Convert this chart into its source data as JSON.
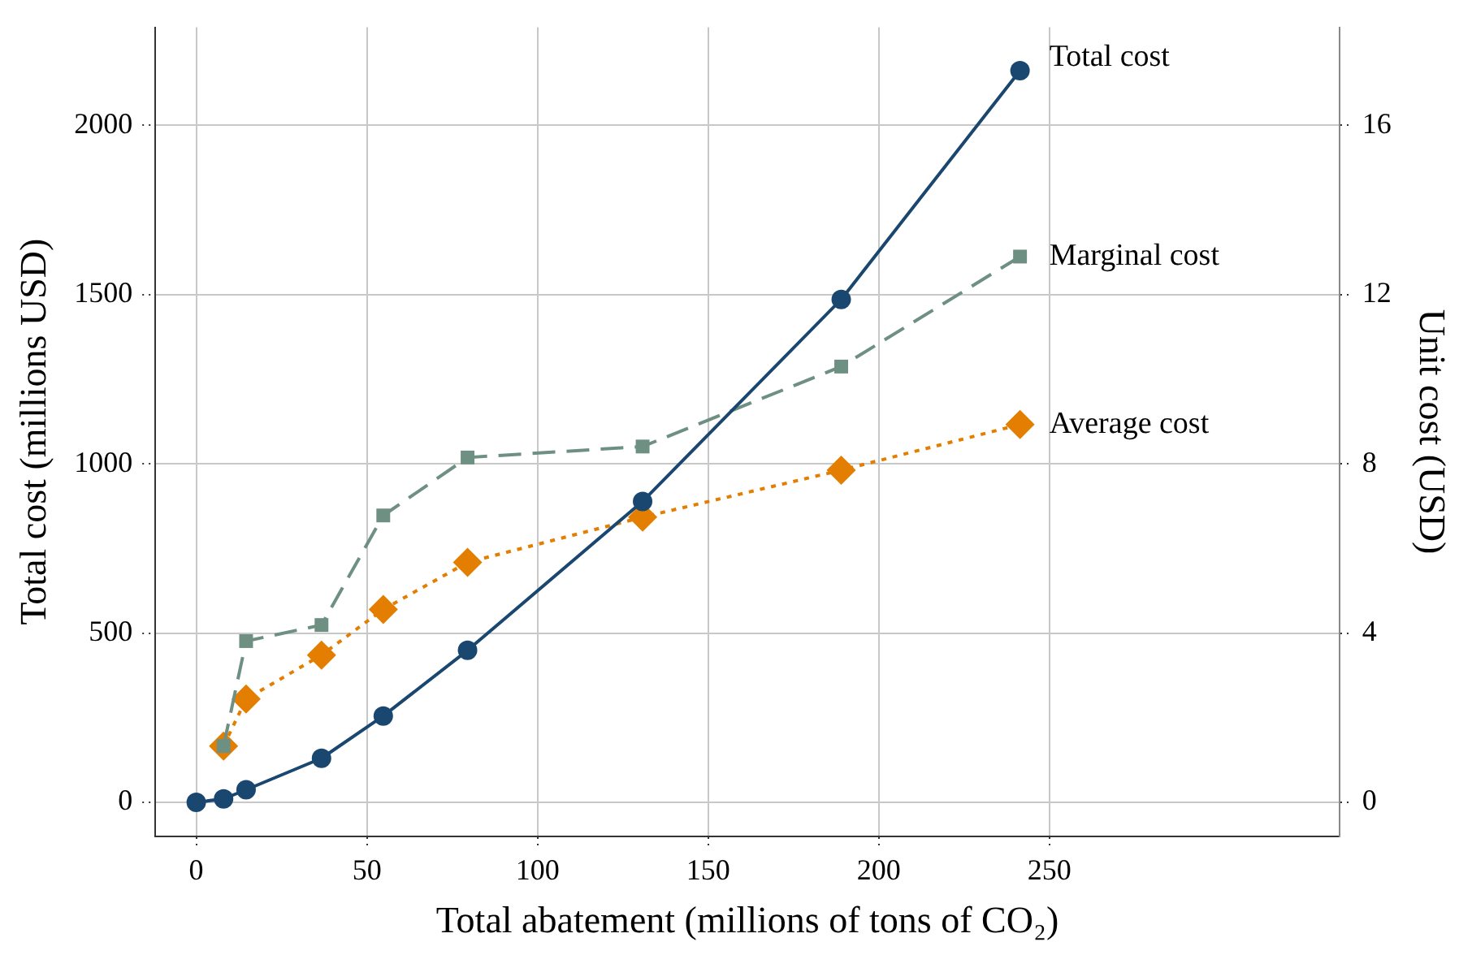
{
  "chart_data": {
    "type": "line",
    "xlabel": "Total abatement (millions of tons of CO₂)",
    "ylabel": "Total cost (millions USD)",
    "y2label": "Unit cost (USD)",
    "xlim": [
      -12,
      335
    ],
    "xticks": [
      0,
      50,
      100,
      150,
      200,
      250
    ],
    "ylim": [
      -100,
      2290
    ],
    "yticks": [
      0,
      500,
      1000,
      1500,
      2000
    ],
    "y2lim": [
      -0.8,
      18.32
    ],
    "y2ticks": [
      0,
      4,
      8,
      12,
      16
    ],
    "grid": true,
    "legend": false,
    "series": [
      {
        "name": "Total cost",
        "color": "#1a476f",
        "marker": "circle",
        "line_style": "solid",
        "x": [
          0,
          8,
          14.6,
          36.7,
          54.8,
          79.5,
          130.8,
          189,
          241.4
        ],
        "values": [
          0,
          10,
          37,
          130,
          255,
          449,
          889,
          1486,
          2162
        ]
      },
      {
        "name": "Marginal cost",
        "color": "#6e9083",
        "marker": "square",
        "line_style": "dashed",
        "axis": "y2",
        "x": [
          8,
          14.6,
          36.7,
          54.8,
          79.5,
          130.8,
          189,
          241.4
        ],
        "values": [
          1.33,
          3.81,
          4.19,
          6.78,
          8.15,
          8.41,
          10.3,
          12.9
        ]
      },
      {
        "name": "Average cost",
        "color": "#e37e00",
        "marker": "diamond",
        "line_style": "dotted",
        "axis": "y2",
        "x": [
          8,
          14.6,
          36.7,
          54.8,
          79.5,
          130.8,
          189,
          241.4
        ],
        "values": [
          1.33,
          2.44,
          3.48,
          4.56,
          5.67,
          6.74,
          7.85,
          8.93
        ]
      }
    ]
  }
}
